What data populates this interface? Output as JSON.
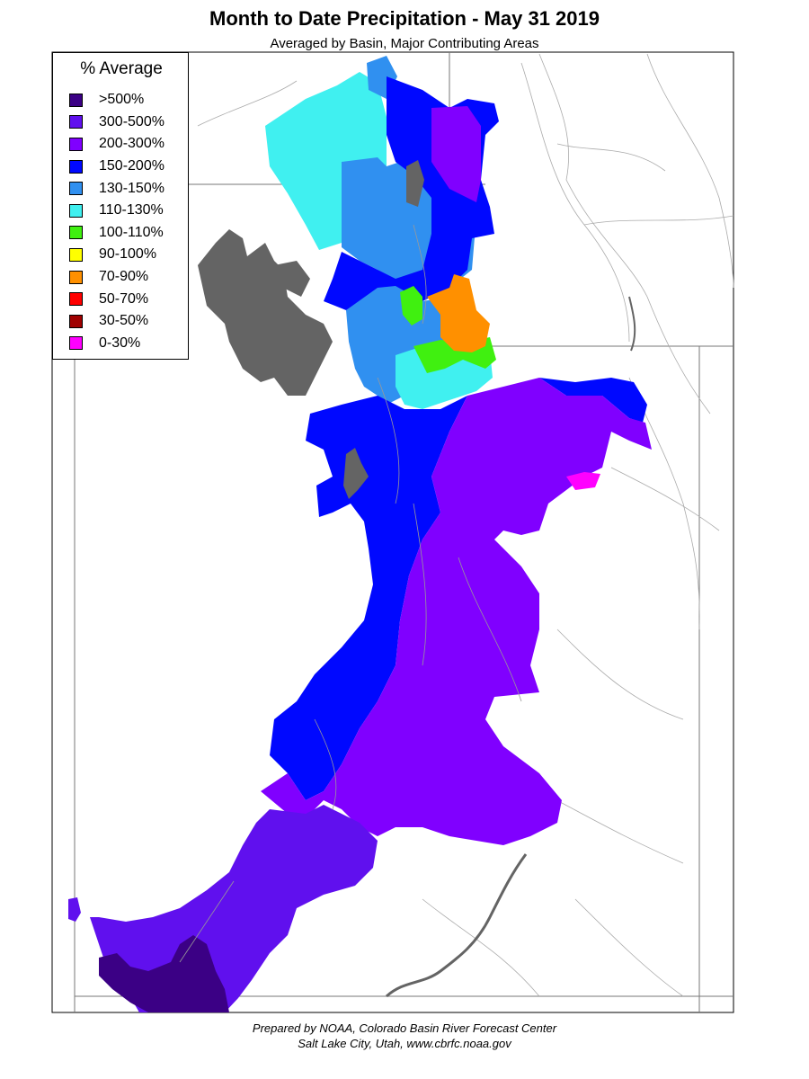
{
  "title": "Month to Date Precipitation - May 31 2019",
  "subtitle": "Averaged by Basin, Major Contributing Areas",
  "legend": {
    "title": "% Average",
    "items": [
      {
        "label": ">500%",
        "color": "#3b0085"
      },
      {
        "label": "300-500%",
        "color": "#6010ee"
      },
      {
        "label": "200-300%",
        "color": "#8000ff"
      },
      {
        "label": "150-200%",
        "color": "#0008ff"
      },
      {
        "label": "130-150%",
        "color": "#3090f0"
      },
      {
        "label": "110-130%",
        "color": "#40f0f0"
      },
      {
        "label": "100-110%",
        "color": "#40f010"
      },
      {
        "label": "90-100%",
        "color": "#ffff00"
      },
      {
        "label": "70-90%",
        "color": "#ff9000"
      },
      {
        "label": "50-70%",
        "color": "#ff0000"
      },
      {
        "label": "30-50%",
        "color": "#a00000"
      },
      {
        "label": "0-30%",
        "color": "#ff00ff"
      }
    ]
  },
  "map": {
    "no_data_color": "#646464",
    "boundary_color": "#888888",
    "river_color": "#999999"
  },
  "credit": {
    "line1": "Prepared by NOAA, Colorado Basin River Forecast Center",
    "line2": "Salt Lake City, Utah, www.cbrfc.noaa.gov"
  }
}
